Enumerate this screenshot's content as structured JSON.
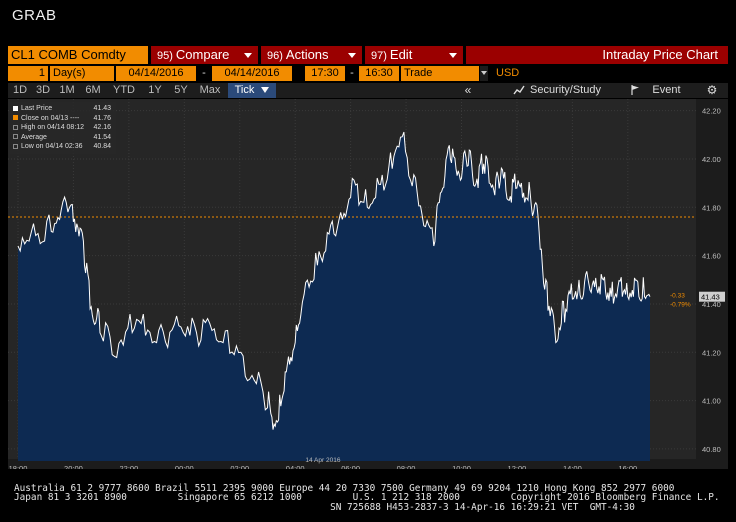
{
  "app": {
    "grab_label": "GRAB"
  },
  "command": {
    "ticker": "CL1 COMB Comdty",
    "menus": [
      {
        "num": "95)",
        "label": "Compare"
      },
      {
        "num": "96)",
        "label": "Actions"
      },
      {
        "num": "97)",
        "label": "Edit"
      }
    ],
    "title": "Intraday Price Chart"
  },
  "settings": {
    "period_count": "1",
    "period_unit": "Day(s)",
    "start_date": "04/14/2016",
    "end_date": "04/14/2016",
    "dash": "-",
    "start_time": "17:30",
    "end_time": "16:30",
    "event_type": "Trade",
    "currency": "USD"
  },
  "toolbar": {
    "ranges": [
      "1D",
      "3D",
      "1M",
      "6M",
      "YTD",
      "1Y",
      "5Y",
      "Max"
    ],
    "tick_label": "Tick",
    "back_label": "«",
    "study_label": "Security/Study",
    "event_label": "Event",
    "gear": "gear-icon"
  },
  "legend": [
    {
      "label": "Last Price",
      "value": "41.43",
      "icon_color": "#ffffff"
    },
    {
      "label": "Close on 04/13 ----",
      "value": "41.76",
      "icon_color": "#f28c00"
    },
    {
      "label": "High on 04/14 08:12",
      "value": "42.16",
      "icon_color": "#888888"
    },
    {
      "label": "Average",
      "value": "41.54",
      "icon_color": "#888888"
    },
    {
      "label": "Low on 04/14 02:36",
      "value": "40.84",
      "icon_color": "#888888"
    }
  ],
  "colors": {
    "price_line": "#ffffff",
    "fill": "#0d2a52",
    "close_line": "#f28c00",
    "change_negative": "#f28c00",
    "last_price_badge": "#cfcfcf"
  },
  "chart_data": {
    "type": "area",
    "title": "",
    "date_label": "14 Apr 2016",
    "x_ticks": [
      "18:00",
      "20:00",
      "22:00",
      "00:00",
      "02:00",
      "04:00",
      "06:00",
      "08:00",
      "10:00",
      "12:00",
      "14:00",
      "16:00"
    ],
    "y_ticks": [
      "42.20",
      "42.00",
      "41.80",
      "41.60",
      "41.40",
      "41.20",
      "41.00",
      "40.80"
    ],
    "ylim": [
      40.75,
      42.24
    ],
    "reference_close": 41.76,
    "last_value_label": "41.43",
    "change_label": "-0.33",
    "change_pct_label": "-0.79%",
    "series": [
      {
        "x_hours": [
          0,
          0.4,
          0.8,
          1.2,
          1.5,
          1.8,
          2.0,
          2.2,
          2.4,
          2.6,
          2.8,
          3.0,
          3.4,
          3.8,
          4.2,
          4.6,
          5.0,
          5.4,
          5.8,
          6.2,
          6.6,
          7.0,
          7.4,
          7.8,
          8.2,
          8.6,
          9.0,
          9.2,
          9.4,
          9.6,
          9.8,
          10.0,
          10.2,
          10.5,
          10.8,
          11.1,
          11.4,
          11.7,
          12.0,
          12.3,
          12.6,
          12.9,
          13.2,
          13.5,
          13.8,
          14.1,
          14.4,
          14.7,
          15.0,
          15.2,
          15.4,
          15.6,
          15.8,
          16.0,
          16.2,
          16.4,
          16.6,
          16.8,
          17.0,
          17.2,
          17.4,
          17.6,
          17.8,
          18.0,
          18.2,
          18.4,
          18.6,
          18.8,
          19.0,
          19.2,
          19.4,
          19.6,
          19.8,
          20.0,
          20.2,
          20.4,
          20.6,
          20.8,
          21.0,
          21.2,
          21.4,
          21.6,
          21.8,
          22.0,
          22.2,
          22.4,
          22.6,
          22.8
        ],
        "values": [
          41.64,
          41.66,
          41.65,
          41.7,
          41.75,
          41.78,
          41.74,
          41.68,
          41.56,
          41.38,
          41.32,
          41.27,
          41.19,
          41.23,
          41.3,
          41.27,
          41.24,
          41.22,
          41.31,
          41.27,
          41.25,
          41.29,
          41.24,
          41.19,
          41.1,
          41.07,
          40.97,
          40.88,
          40.92,
          41.04,
          41.15,
          41.24,
          41.35,
          41.47,
          41.56,
          41.62,
          41.69,
          41.75,
          41.84,
          41.81,
          41.8,
          41.84,
          41.87,
          41.96,
          42.09,
          41.93,
          41.86,
          41.72,
          41.64,
          41.82,
          41.93,
          42.0,
          41.96,
          41.92,
          41.97,
          41.93,
          41.88,
          41.98,
          41.9,
          41.85,
          41.91,
          41.87,
          41.82,
          41.88,
          41.84,
          41.83,
          41.78,
          41.7,
          41.46,
          41.35,
          41.24,
          41.32,
          41.37,
          41.42,
          41.45,
          41.44,
          41.48,
          41.47,
          41.44,
          41.45,
          41.43,
          41.43,
          41.43,
          41.43,
          41.43,
          41.43,
          41.43,
          41.43
        ]
      }
    ],
    "grid": true
  },
  "footer": {
    "line1": "Australia 61 2 9777 8600 Brazil 5511 2395 9000 Europe 44 20 7330 7500 Germany 49 69 9204 1210 Hong Kong 852 2977 6000",
    "line2": "Japan 81 3 3201 8900         Singapore 65 6212 1000         U.S. 1 212 318 2000         Copyright 2016 Bloomberg Finance L.P.",
    "line3": "                                                        SN 725688 H453-2837-3 14-Apr-16 16:29:21 VET  GMT-4:30"
  }
}
